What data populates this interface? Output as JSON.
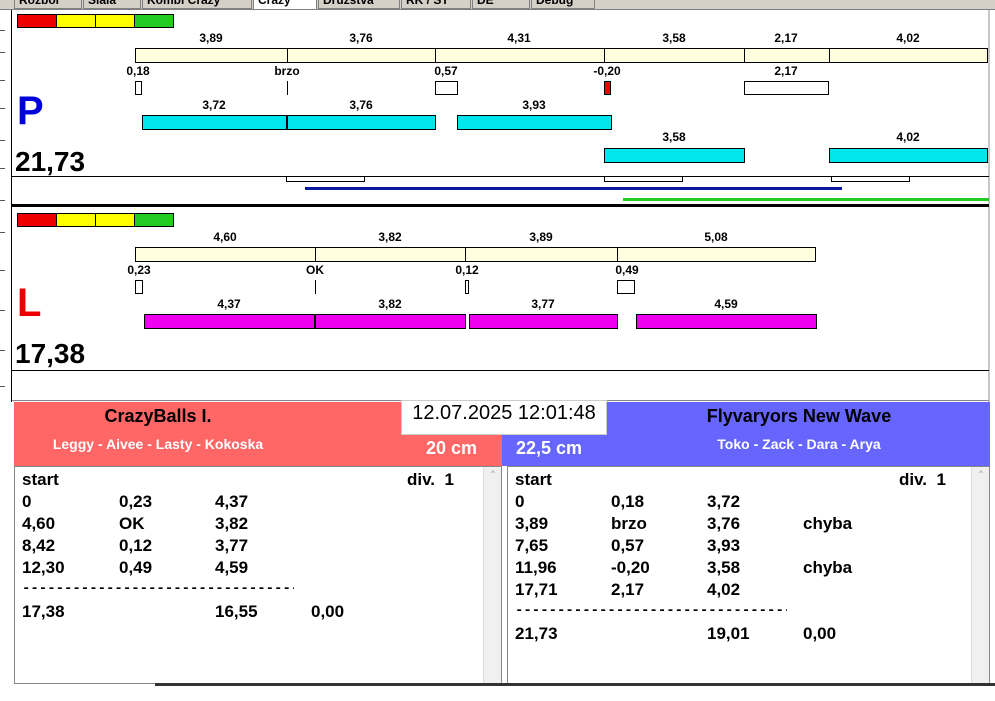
{
  "tabs": [
    "Rozbor",
    "Slala",
    "Kombi Crazy",
    "Crazy",
    "Družstva",
    "RK / ST",
    "DE",
    "Debug"
  ],
  "traffic_colors": [
    "#ee0000",
    "#ffff00",
    "#ffff00",
    "#22cc22"
  ],
  "colors": {
    "top_bar_fill": "#ffffe0",
    "right_team_bar": "#00e6ee",
    "left_team_bar": "#ee00ee",
    "error_box": "#ee0000",
    "blue_line": "#0a1aa0",
    "green_line": "#22cc22",
    "left_team_header": "#ff6666",
    "right_team_header": "#6666ff"
  },
  "graph_right": {
    "letter": "P",
    "letter_color": "#0000dd",
    "score": "21,73",
    "top_labels": [
      "3,89",
      "3,76",
      "4,31",
      "3,58",
      "2,17",
      "4,02"
    ],
    "split_labels": [
      "0,18",
      "brzo",
      "0,57",
      "-0,20",
      "2,17"
    ],
    "row1_labels": [
      "3,72",
      "3,76",
      "3,93"
    ],
    "row2_labels": [
      "3,58",
      "4,02"
    ]
  },
  "graph_left": {
    "letter": "L",
    "letter_color": "#ee0000",
    "score": "17,38",
    "top_labels": [
      "4,60",
      "3,82",
      "3,89",
      "5,08"
    ],
    "split_labels": [
      "0,23",
      "OK",
      "0,12",
      "0,49"
    ],
    "row1_labels": [
      "4,37",
      "3,82",
      "3,77",
      "4,59"
    ]
  },
  "timestamp": "12.07.2025 12:01:48",
  "team_left": {
    "name": "CrazyBalls I.",
    "players": "Leggy - Aivee - Lasty - Kokoska",
    "distance": "20 cm",
    "list": {
      "header": [
        "start",
        "div.  1"
      ],
      "rows": [
        [
          "0",
          "0,23",
          "4,37",
          ""
        ],
        [
          "4,60",
          "OK",
          "3,82",
          ""
        ],
        [
          "8,42",
          "0,12",
          "3,77",
          ""
        ],
        [
          "12,30",
          "0,49",
          "4,59",
          ""
        ]
      ],
      "separator": "---------------------------------------",
      "total": [
        "17,38",
        "",
        "16,55",
        "0,00"
      ]
    }
  },
  "team_right": {
    "name": "Flyvaryors New Wave",
    "players": "Toko - Zack - Dara - Arya",
    "distance": "22,5 cm",
    "list": {
      "header": [
        "start",
        "div.  1"
      ],
      "rows": [
        [
          "0",
          "0,18",
          "3,72",
          ""
        ],
        [
          "3,89",
          "brzo",
          "3,76",
          "chyba"
        ],
        [
          "7,65",
          "0,57",
          "3,93",
          ""
        ],
        [
          "11,96",
          "-0,20",
          "3,58",
          "chyba"
        ],
        [
          "17,71",
          "2,17",
          "4,02",
          ""
        ]
      ],
      "separator": "---------------------------------------",
      "total": [
        "21,73",
        "",
        "19,01",
        "0,00"
      ]
    }
  }
}
